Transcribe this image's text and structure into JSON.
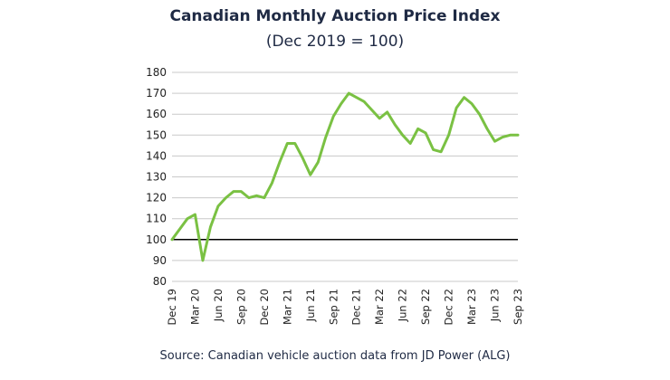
{
  "chart_data": {
    "type": "line",
    "title": "Canadian Monthly Auction Price Index",
    "subtitle": "(Dec 2019 = 100)",
    "source": "Source: Canadian vehicle auction data from JD Power (ALG)",
    "xlabel": "",
    "ylabel": "",
    "ylim": [
      80,
      180
    ],
    "yticks": [
      80,
      90,
      100,
      110,
      120,
      130,
      140,
      150,
      160,
      170,
      180
    ],
    "reference_line": 100,
    "grid": true,
    "categories": [
      "Dec 19",
      "Jan 20",
      "Feb 20",
      "Mar 20",
      "Apr 20",
      "May 20",
      "Jun 20",
      "Jul 20",
      "Aug 20",
      "Sep 20",
      "Oct 20",
      "Nov 20",
      "Dec 20",
      "Jan 21",
      "Feb 21",
      "Mar 21",
      "Apr 21",
      "May 21",
      "Jun 21",
      "Jul 21",
      "Aug 21",
      "Sep 21",
      "Oct 21",
      "Nov 21",
      "Dec 21",
      "Jan 22",
      "Feb 22",
      "Mar 22",
      "Apr 22",
      "May 22",
      "Jun 22",
      "Jul 22",
      "Aug 22",
      "Sep 22",
      "Oct 22",
      "Nov 22",
      "Dec 22",
      "Jan 23",
      "Feb 23",
      "Mar 23",
      "Apr 23",
      "May 23",
      "Jun 23",
      "Jul 23",
      "Aug 23",
      "Sep 23"
    ],
    "x_tick_labels": [
      "Dec 19",
      "Mar 20",
      "Jun 20",
      "Sep 20",
      "Dec 20",
      "Mar 21",
      "Jun 21",
      "Sep 21",
      "Dec 21",
      "Mar 22",
      "Jun 22",
      "Sep 22",
      "Dec 22",
      "Mar 23",
      "Jun 23",
      "Sep 23"
    ],
    "series": [
      {
        "name": "Auction Price Index",
        "color": "#7ac143",
        "values": [
          100,
          105,
          110,
          112,
          90,
          106,
          116,
          120,
          123,
          123,
          120,
          121,
          120,
          127,
          137,
          146,
          146,
          139,
          131,
          137,
          149,
          159,
          165,
          170,
          168,
          166,
          162,
          158,
          161,
          155,
          150,
          146,
          153,
          151,
          143,
          142,
          150,
          163,
          168,
          165,
          160,
          153,
          147,
          149,
          150,
          150
        ]
      }
    ]
  },
  "colors": {
    "line": "#7ac143",
    "grid": "#c9c9c9",
    "baseline": "#000000",
    "text": "#1f2a44"
  }
}
